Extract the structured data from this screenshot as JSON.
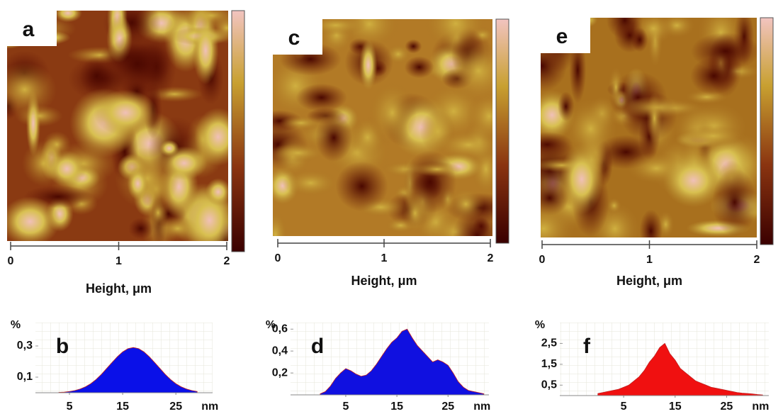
{
  "chart_data": [
    {
      "type": "image",
      "panel": "a",
      "xlabel": "Height, μm",
      "xlim": [
        0,
        2
      ],
      "xticks": [
        0,
        1,
        2
      ]
    },
    {
      "type": "image",
      "panel": "c",
      "xlabel": "Height, μm",
      "xlim": [
        0,
        2
      ],
      "xticks": [
        0,
        1,
        2
      ]
    },
    {
      "type": "image",
      "panel": "e",
      "xlabel": "Height, μm",
      "xlim": [
        0,
        2
      ],
      "xticks": [
        0,
        1,
        2
      ]
    },
    {
      "type": "area",
      "panel": "b",
      "ylabel": "%",
      "xlabel": "nm",
      "color": "#0a10e8",
      "x": [
        3,
        4,
        5,
        6,
        7,
        8,
        9,
        10,
        11,
        12,
        13,
        14,
        15,
        16,
        17,
        18,
        19,
        20,
        21,
        22,
        23,
        24,
        25,
        26,
        27,
        28,
        29
      ],
      "values": [
        0.002,
        0.004,
        0.008,
        0.014,
        0.024,
        0.038,
        0.058,
        0.085,
        0.118,
        0.156,
        0.194,
        0.231,
        0.262,
        0.283,
        0.29,
        0.283,
        0.262,
        0.231,
        0.194,
        0.156,
        0.118,
        0.085,
        0.058,
        0.038,
        0.024,
        0.014,
        0.008
      ],
      "xlim": [
        -1.4,
        31.9
      ],
      "xticks": [
        5,
        15,
        25
      ],
      "ylim": [
        0,
        0.45
      ],
      "yticks": [
        {
          "value": 0.3,
          "label": "0,3"
        },
        {
          "value": 0.1,
          "label": "0,1"
        }
      ]
    },
    {
      "type": "area",
      "panel": "d",
      "ylabel": "%",
      "xlabel": "nm",
      "color": "#1010e0",
      "x": [
        0,
        1,
        2,
        3,
        4,
        5,
        6,
        7,
        8,
        9,
        10,
        11,
        12,
        13,
        14,
        15,
        16,
        17,
        18,
        19,
        20,
        21,
        22,
        23,
        24,
        25,
        26,
        27,
        28,
        29,
        30,
        31,
        32
      ],
      "values": [
        0.01,
        0.03,
        0.08,
        0.15,
        0.2,
        0.24,
        0.22,
        0.19,
        0.17,
        0.18,
        0.22,
        0.28,
        0.35,
        0.42,
        0.48,
        0.52,
        0.58,
        0.6,
        0.52,
        0.45,
        0.4,
        0.35,
        0.3,
        0.32,
        0.3,
        0.27,
        0.2,
        0.12,
        0.07,
        0.04,
        0.03,
        0.02,
        0.01
      ],
      "xlim": [
        -5.8,
        33
      ],
      "xticks": [
        5,
        15,
        25
      ],
      "ylim": [
        0,
        0.66
      ],
      "yticks": [
        {
          "value": 0.6,
          "label": "0,6"
        },
        {
          "value": 0.4,
          "label": "0,4"
        },
        {
          "value": 0.2,
          "label": "0,2"
        }
      ]
    },
    {
      "type": "area",
      "panel": "f",
      "ylabel": "%",
      "xlabel": "nm",
      "color": "#f01010",
      "x": [
        0,
        1,
        2,
        3,
        4,
        5,
        6,
        7,
        8,
        9,
        10,
        11,
        12,
        13,
        14,
        15,
        16,
        17,
        18,
        19,
        20,
        21,
        22,
        23,
        24,
        25,
        26,
        27,
        28,
        29,
        30,
        31,
        32
      ],
      "values": [
        0.1,
        0.15,
        0.2,
        0.25,
        0.3,
        0.4,
        0.5,
        0.7,
        0.9,
        1.2,
        1.6,
        1.9,
        2.3,
        2.5,
        2.0,
        1.7,
        1.3,
        1.1,
        0.9,
        0.7,
        0.6,
        0.5,
        0.4,
        0.35,
        0.3,
        0.25,
        0.2,
        0.15,
        0.12,
        0.1,
        0.08,
        0.05,
        0.03
      ],
      "xlim": [
        -7.4,
        33.2
      ],
      "xticks": [
        5,
        15,
        25
      ],
      "ylim": [
        0,
        3.5
      ],
      "yticks": [
        {
          "value": 2.5,
          "label": "2,5"
        },
        {
          "value": 1.5,
          "label": "1,5"
        },
        {
          "value": 0.5,
          "label": "0,5"
        }
      ]
    }
  ]
}
